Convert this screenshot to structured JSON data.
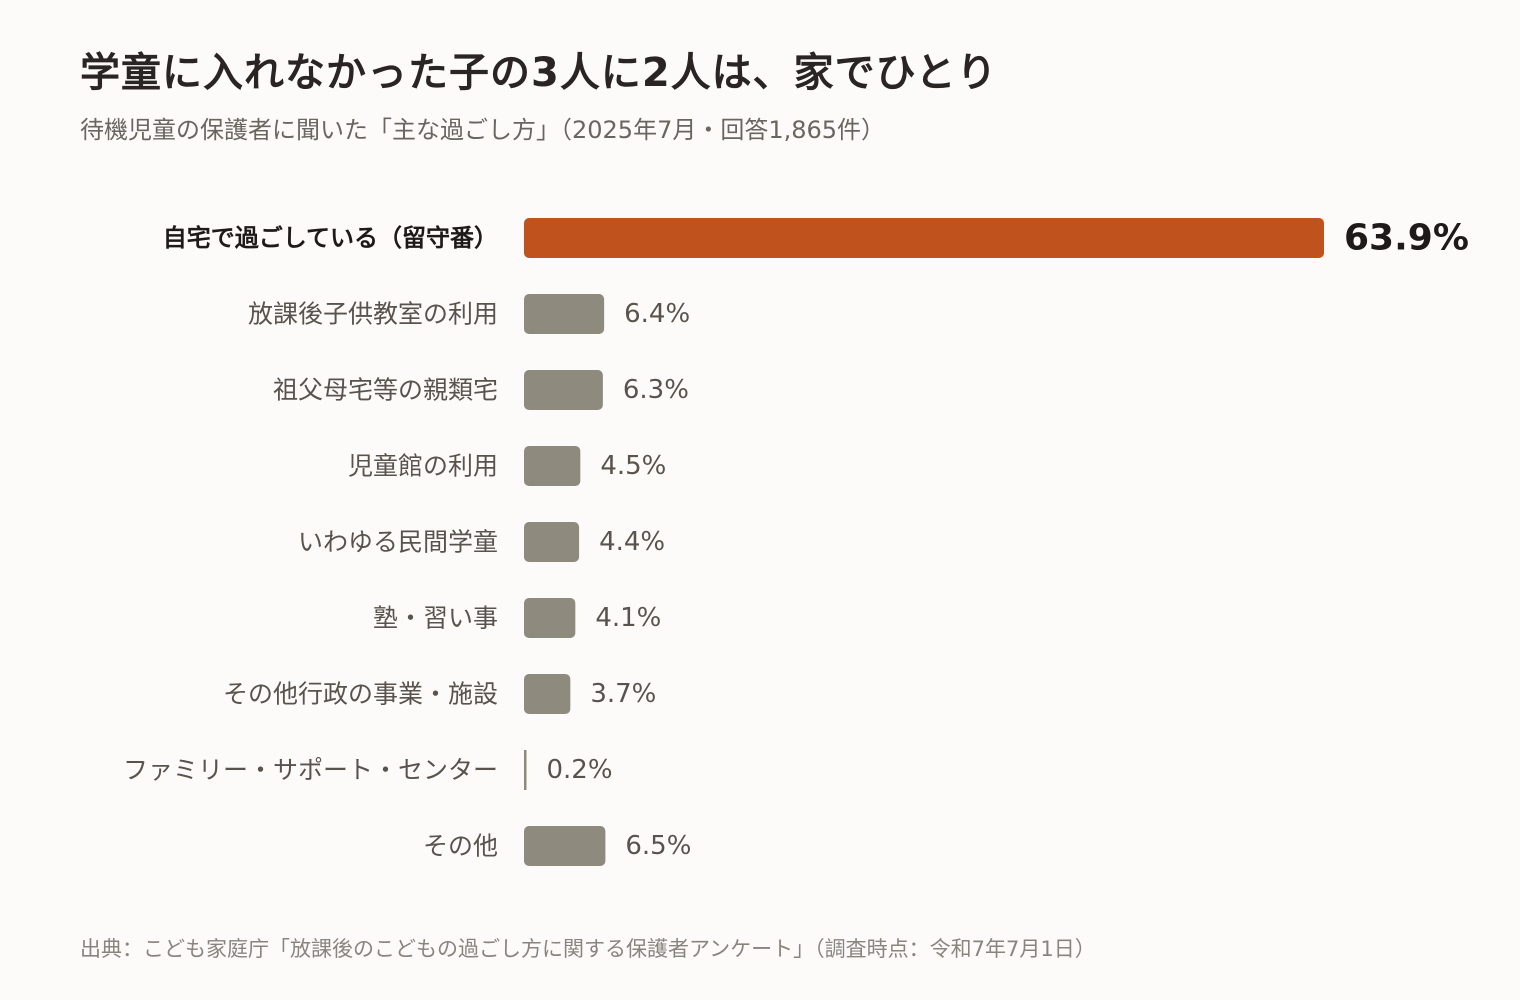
{
  "title": "学童に入れなかった子の3人に2人は、家でひとり",
  "subtitle": "待機児童の保護者に聞いた「主な過ごし方」（2025年7月・回答1,865件）",
  "source": "出典：こども家庭庁「放課後のこどもの過ごし方に関する保護者アンケート」（調査時点：令和7年7月1日）",
  "colors": {
    "highlight": "#c0531d",
    "default": "#8e8a7e",
    "label_strong": "#1e1a17",
    "label": "#5a534d"
  },
  "chart_data": {
    "type": "bar",
    "orientation": "horizontal",
    "title": "学童に入れなかった子の3人に2人は、家でひとり",
    "subtitle": "待機児童の保護者に聞いた「主な過ごし方」（2025年7月・回答1,865件）",
    "xlabel": "",
    "ylabel": "",
    "xlim": [
      0,
      63.9
    ],
    "grid": false,
    "legend": "none",
    "unit": "%",
    "categories": [
      "自宅で過ごしている（留守番）",
      "放課後子供教室の利用",
      "祖父母宅等の親類宅",
      "児童館の利用",
      "いわゆる民間学童",
      "塾・習い事",
      "その他行政の事業・施設",
      "ファミリー・サポート・センター",
      "その他"
    ],
    "values": [
      63.9,
      6.4,
      6.3,
      4.5,
      4.4,
      4.1,
      3.7,
      0.2,
      6.5
    ],
    "value_labels": [
      "63.9%",
      "6.4%",
      "6.3%",
      "4.5%",
      "4.4%",
      "4.1%",
      "3.7%",
      "0.2%",
      "6.5%"
    ],
    "highlight_index": 0
  }
}
